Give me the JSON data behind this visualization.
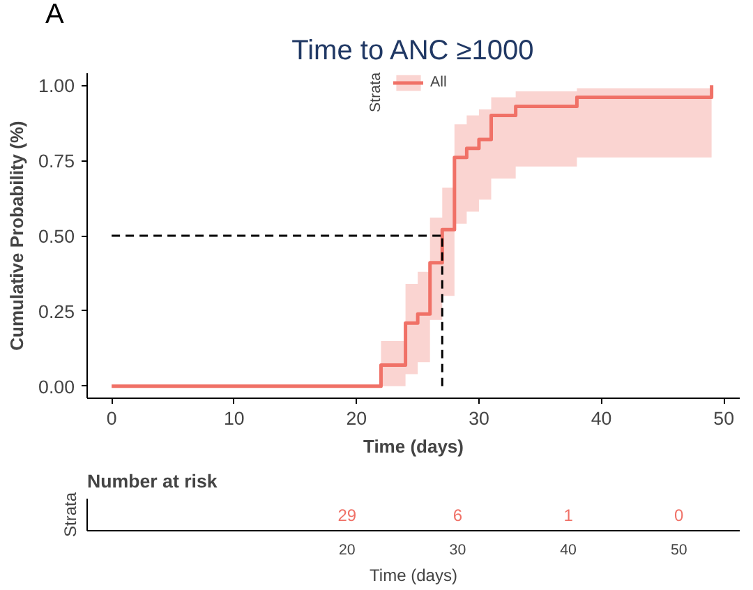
{
  "chart_data": [
    {
      "type": "step",
      "title": "Time to ANC ≥1000",
      "xlabel": "Time (days)",
      "ylabel": "Cumulative Probability (%)",
      "legend_title": "Strata",
      "legend": "top",
      "grid": false,
      "annotations": [
        "A"
      ],
      "xlim": [
        -2,
        51.3
      ],
      "xticks": [
        0,
        10,
        20,
        30,
        40,
        50
      ],
      "ylim": [
        -0.04,
        1.04
      ],
      "yticks": [
        {
          "value": 0,
          "label": "0.00"
        },
        {
          "value": 0.25,
          "label": "0.25"
        },
        {
          "value": 0.5,
          "label": "0.50"
        },
        {
          "value": 0.75,
          "label": "0.75"
        },
        {
          "value": 1,
          "label": "1.00"
        }
      ],
      "ref_lines": [
        {
          "axis": "y",
          "value": 0.5,
          "line_style": "dashed",
          "color": "#000000"
        },
        {
          "axis": "x",
          "value": 27,
          "line_style": "dashed",
          "color": "#000000"
        }
      ],
      "series": [
        {
          "name": "All",
          "color": "#f07167",
          "x": [
            0,
            22,
            24,
            25,
            26,
            27,
            28,
            29,
            30,
            31,
            33,
            38,
            49
          ],
          "values": [
            0,
            0.07,
            0.21,
            0.24,
            0.41,
            0.52,
            0.76,
            0.79,
            0.82,
            0.9,
            0.93,
            0.96,
            1.0
          ],
          "lower": [
            0,
            0,
            0.04,
            0.08,
            0.22,
            0.3,
            0.54,
            0.58,
            0.62,
            0.69,
            0.73,
            0.76,
            0.76
          ],
          "upper": [
            0,
            0.15,
            0.34,
            0.38,
            0.56,
            0.66,
            0.87,
            0.9,
            0.92,
            0.96,
            0.98,
            0.99,
            0.99
          ]
        }
      ]
    },
    {
      "type": "heatmap",
      "title": "Number at risk",
      "xlabel": "Time (days)",
      "ylabel": "Strata",
      "categories": [
        "20",
        "30",
        "40",
        "50"
      ],
      "y_categories": [
        null
      ],
      "data_labels": true,
      "color": "#f07167",
      "cells": [
        [
          29,
          6,
          1,
          0
        ]
      ]
    }
  ]
}
